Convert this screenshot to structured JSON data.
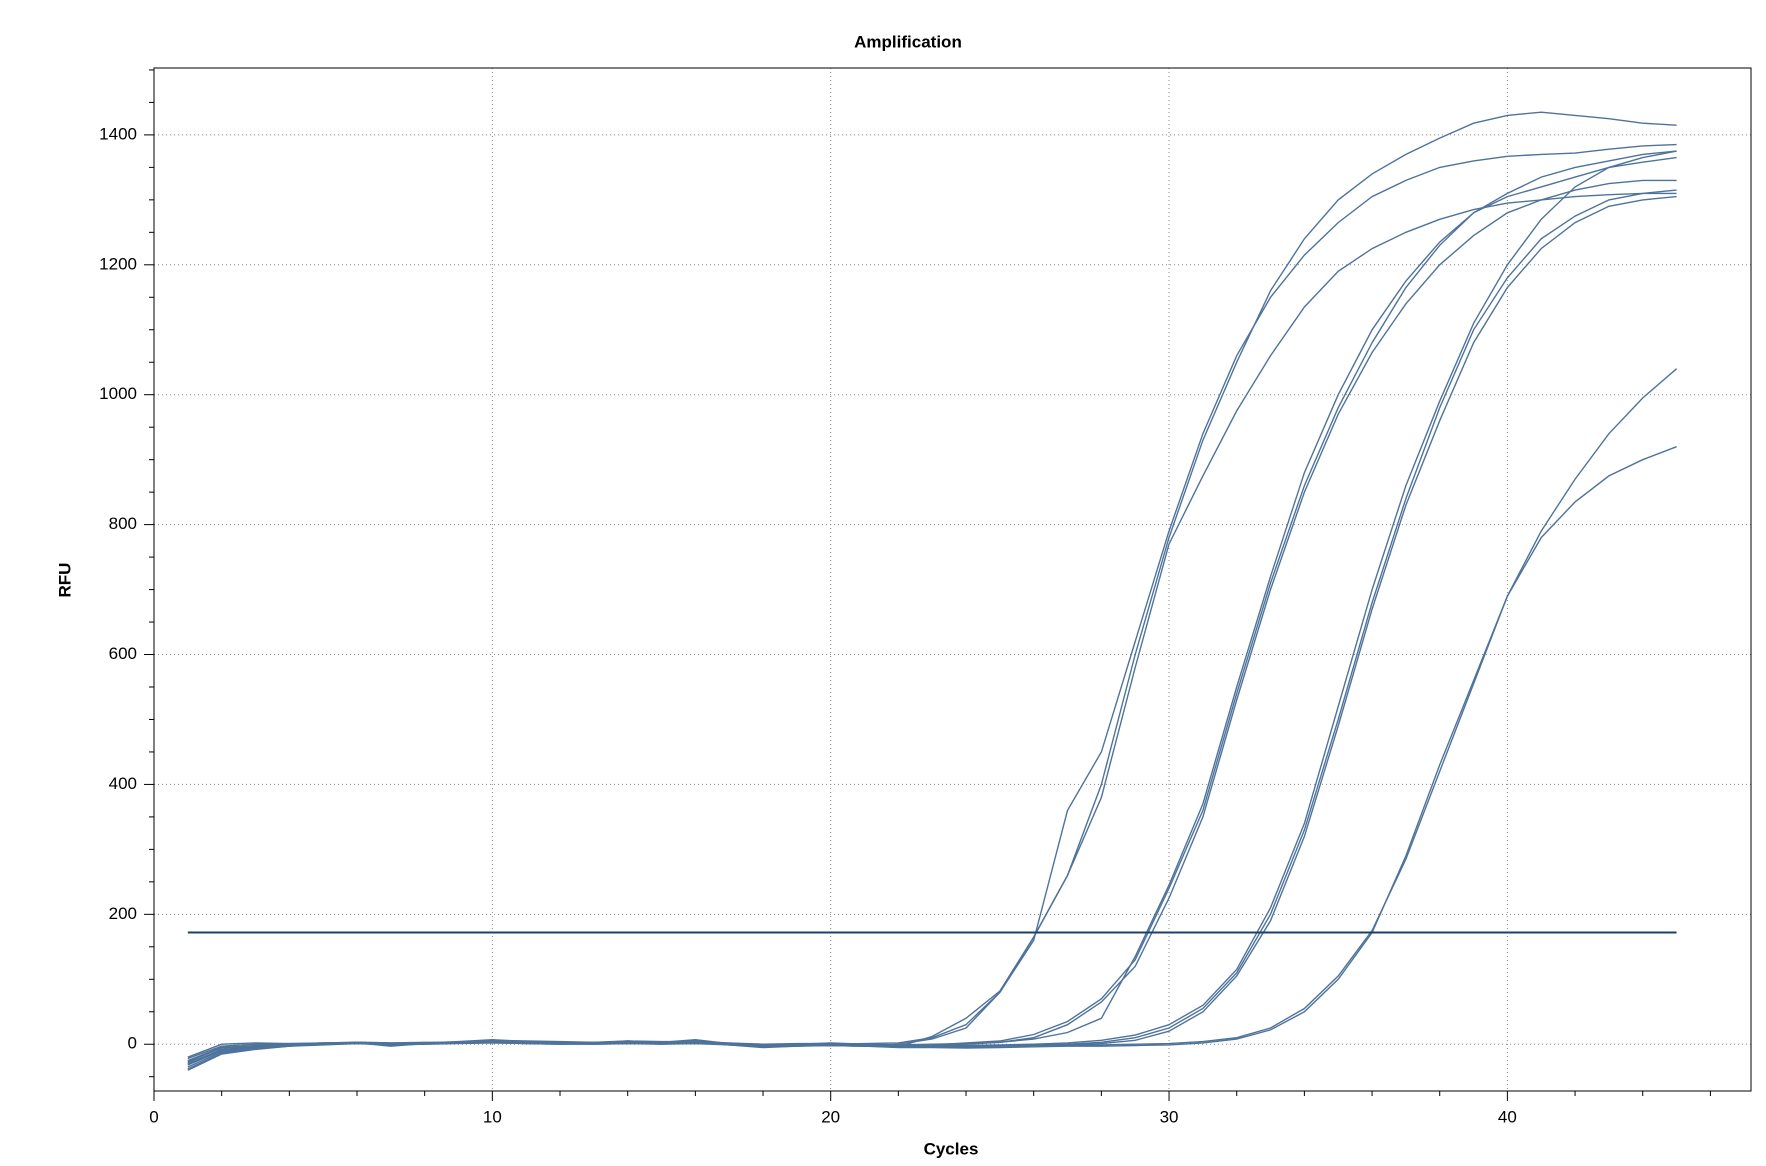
{
  "chart_data": {
    "type": "line",
    "title": "Amplification",
    "x_label": "Cycles",
    "y_label": "RFU",
    "xlim": [
      0,
      47.2
    ],
    "ylim": [
      -72,
      1503
    ],
    "xticks": [
      0,
      10,
      20,
      30,
      40
    ],
    "yticks": [
      0,
      200,
      400,
      600,
      800,
      1000,
      1200,
      1400
    ],
    "x_minor_ticks": [
      2,
      4,
      6,
      8,
      12,
      14,
      16,
      18,
      22,
      24,
      26,
      28,
      32,
      34,
      36,
      38,
      42,
      44,
      46
    ],
    "y_minor_ticks": [
      -50,
      50,
      100,
      150,
      250,
      300,
      350,
      450,
      500,
      550,
      650,
      700,
      750,
      850,
      900,
      950,
      1050,
      1100,
      1150,
      1250,
      1300,
      1350,
      1450,
      1500
    ],
    "grid": true,
    "threshold": 172,
    "threshold_color": "#1d4068",
    "x": [
      1,
      2,
      3,
      4,
      5,
      6,
      7,
      8,
      9,
      10,
      11,
      12,
      13,
      14,
      15,
      16,
      17,
      18,
      19,
      20,
      21,
      22,
      23,
      24,
      25,
      26,
      27,
      28,
      29,
      30,
      31,
      32,
      33,
      34,
      35,
      36,
      37,
      38,
      39,
      40,
      41,
      42,
      43,
      44,
      45
    ],
    "series": [
      {
        "color": "#4e739b",
        "values": [
          -30,
          -10,
          -5,
          -2,
          1,
          3,
          1,
          2,
          3,
          5,
          3,
          2,
          1,
          3,
          1,
          2,
          0,
          -3,
          -1,
          0,
          1,
          2,
          10,
          30,
          80,
          165,
          260,
          400,
          600,
          780,
          930,
          1050,
          1160,
          1240,
          1300,
          1340,
          1370,
          1395,
          1418,
          1430,
          1435,
          1430,
          1425,
          1418,
          1415
        ]
      },
      {
        "color": "#4e739b",
        "values": [
          -25,
          -5,
          -3,
          0,
          2,
          2,
          -3,
          1,
          3,
          6,
          4,
          2,
          2,
          5,
          3,
          7,
          1,
          -2,
          -1,
          -2,
          -3,
          0,
          8,
          25,
          80,
          160,
          360,
          450,
          620,
          790,
          940,
          1060,
          1150,
          1215,
          1265,
          1305,
          1330,
          1350,
          1360,
          1367,
          1370,
          1372,
          1378,
          1383,
          1385
        ]
      },
      {
        "color": "#4e739b",
        "values": [
          -40,
          -15,
          -8,
          -3,
          0,
          2,
          0,
          1,
          2,
          3,
          1,
          0,
          1,
          2,
          0,
          3,
          -1,
          -5,
          -3,
          -1,
          -2,
          -4,
          12,
          40,
          82,
          165,
          260,
          380,
          580,
          770,
          875,
          975,
          1060,
          1135,
          1190,
          1225,
          1250,
          1270,
          1285,
          1295,
          1300,
          1305,
          1308,
          1310,
          1310
        ]
      },
      {
        "color": "#4e739b",
        "values": [
          -35,
          -12,
          -6,
          -2,
          0,
          3,
          2,
          1,
          3,
          4,
          2,
          1,
          0,
          1,
          2,
          3,
          0,
          -2,
          0,
          1,
          0,
          -1,
          0,
          1,
          3,
          8,
          18,
          40,
          135,
          245,
          370,
          550,
          720,
          880,
          1000,
          1100,
          1175,
          1235,
          1280,
          1310,
          1335,
          1350,
          1360,
          1370,
          1375
        ]
      },
      {
        "color": "#4e739b",
        "values": [
          -20,
          0,
          2,
          1,
          1,
          2,
          1,
          2,
          3,
          6,
          5,
          4,
          3,
          4,
          3,
          2,
          1,
          0,
          0,
          2,
          0,
          -2,
          -1,
          2,
          5,
          15,
          35,
          70,
          130,
          240,
          360,
          540,
          710,
          860,
          980,
          1080,
          1165,
          1230,
          1280,
          1305,
          1320,
          1335,
          1350,
          1358,
          1365
        ]
      },
      {
        "color": "#4e739b",
        "values": [
          -30,
          -8,
          -4,
          -1,
          1,
          2,
          -1,
          0,
          2,
          4,
          3,
          2,
          2,
          3,
          2,
          1,
          0,
          -3,
          -2,
          -1,
          -2,
          -3,
          -2,
          0,
          3,
          10,
          30,
          65,
          120,
          225,
          350,
          530,
          700,
          850,
          970,
          1065,
          1140,
          1200,
          1245,
          1280,
          1300,
          1315,
          1325,
          1330,
          1330
        ]
      },
      {
        "color": "#4e739b",
        "values": [
          -28,
          -5,
          -2,
          0,
          2,
          3,
          1,
          2,
          4,
          7,
          4,
          3,
          2,
          4,
          3,
          5,
          1,
          -1,
          0,
          0,
          -1,
          -2,
          -2,
          -3,
          -2,
          -1,
          0,
          3,
          10,
          25,
          55,
          110,
          200,
          330,
          500,
          680,
          840,
          980,
          1100,
          1180,
          1240,
          1275,
          1300,
          1310,
          1315
        ]
      },
      {
        "color": "#4e739b",
        "values": [
          -32,
          -10,
          -5,
          -2,
          0,
          1,
          0,
          1,
          2,
          3,
          2,
          1,
          1,
          2,
          1,
          2,
          0,
          -3,
          -2,
          -2,
          -3,
          -4,
          -4,
          -5,
          -3,
          -2,
          -1,
          1,
          6,
          20,
          50,
          105,
          190,
          320,
          490,
          670,
          830,
          960,
          1080,
          1165,
          1225,
          1265,
          1290,
          1300,
          1305
        ]
      },
      {
        "color": "#4e739b",
        "values": [
          -22,
          -3,
          0,
          1,
          2,
          3,
          2,
          3,
          3,
          5,
          4,
          3,
          3,
          5,
          4,
          4,
          2,
          0,
          1,
          1,
          0,
          -1,
          -1,
          -2,
          -1,
          0,
          2,
          6,
          14,
          30,
          60,
          115,
          210,
          340,
          520,
          700,
          860,
          990,
          1110,
          1200,
          1270,
          1320,
          1350,
          1365,
          1375
        ]
      },
      {
        "color": "#4e739b",
        "values": [
          -38,
          -14,
          -7,
          -3,
          -1,
          1,
          -1,
          0,
          1,
          2,
          1,
          0,
          0,
          1,
          0,
          1,
          -1,
          -4,
          -3,
          -2,
          -3,
          -5,
          -5,
          -6,
          -5,
          -4,
          -3,
          -3,
          -2,
          -1,
          2,
          8,
          22,
          50,
          100,
          172,
          290,
          430,
          560,
          690,
          790,
          870,
          940,
          995,
          1040
        ]
      },
      {
        "color": "#4e739b",
        "values": [
          -26,
          -6,
          -3,
          -1,
          1,
          2,
          0,
          1,
          3,
          5,
          3,
          2,
          1,
          3,
          2,
          3,
          1,
          -2,
          -1,
          0,
          -1,
          -2,
          -3,
          -4,
          -3,
          -2,
          -2,
          -1,
          0,
          1,
          4,
          10,
          25,
          55,
          105,
          175,
          285,
          420,
          555,
          690,
          780,
          835,
          875,
          900,
          920
        ]
      }
    ]
  }
}
